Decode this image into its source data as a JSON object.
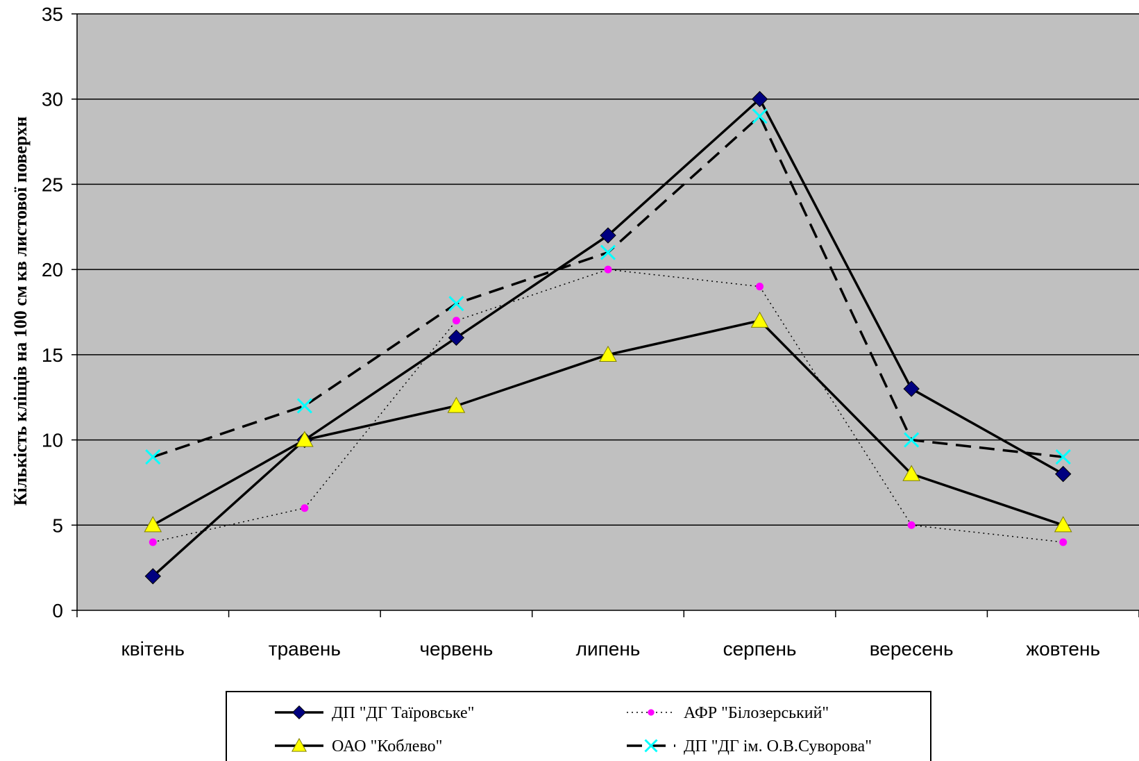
{
  "chart_data": {
    "type": "line",
    "title": "",
    "xlabel": "",
    "ylabel": "Кількість кліщів на 100 см кв листової поверхн",
    "ylim": [
      0,
      35
    ],
    "yticks": [
      0,
      5,
      10,
      15,
      20,
      25,
      30,
      35
    ],
    "grid": "horizontal",
    "legend_position": "bottom",
    "plot_background": "#c0c0c0",
    "categories": [
      "квітень",
      "травень",
      "червень",
      "липень",
      "серпень",
      "вересень",
      "жовтень"
    ],
    "series": [
      {
        "name": "ДП \"ДГ Таїровське\"",
        "values": [
          2,
          10,
          16,
          22,
          30,
          13,
          8
        ],
        "color": "#000000",
        "marker": "diamond",
        "marker_color": "#000080",
        "line_style": "solid"
      },
      {
        "name": "АФР \"Білозерський\"",
        "values": [
          4,
          6,
          17,
          20,
          19,
          5,
          4
        ],
        "color": "#000000",
        "marker": "circle",
        "marker_color": "#ff00ff",
        "line_style": "dotted"
      },
      {
        "name": "ОАО \"Коблево\"",
        "values": [
          5,
          10,
          12,
          15,
          17,
          8,
          5
        ],
        "color": "#000000",
        "marker": "triangle",
        "marker_color": "#ffff00",
        "line_style": "solid"
      },
      {
        "name": "ДП \"ДГ ім. О.В.Суворова\"",
        "values": [
          9,
          12,
          18,
          21,
          29,
          10,
          9
        ],
        "color": "#000000",
        "marker": "x",
        "marker_color": "#00ffff",
        "line_style": "dashed"
      }
    ]
  }
}
